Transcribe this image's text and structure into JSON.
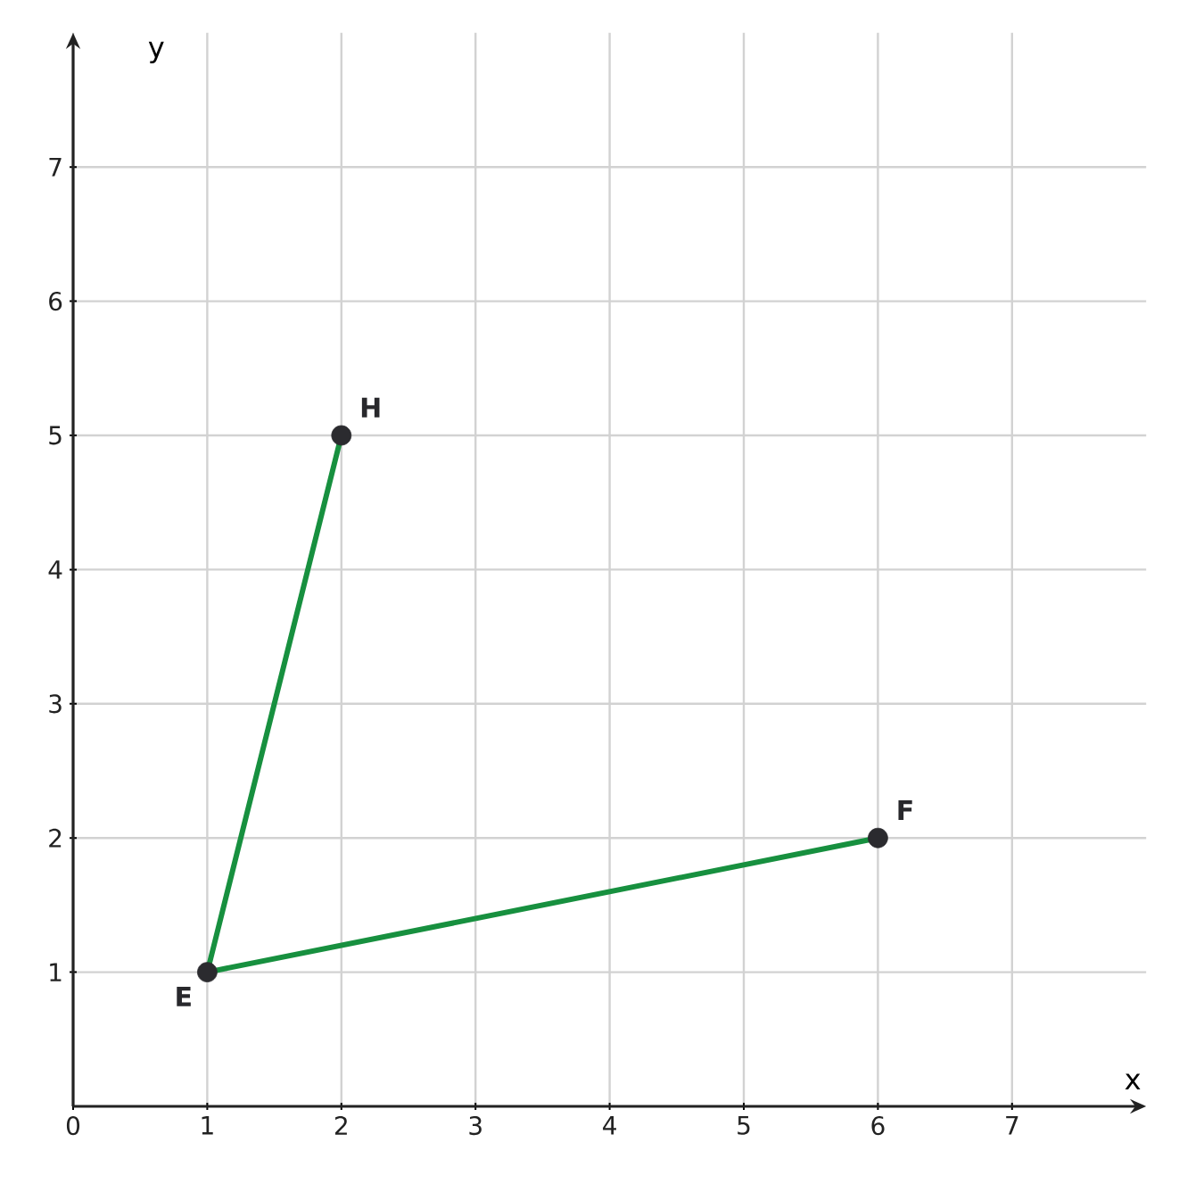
{
  "chart_data": {
    "type": "line",
    "xlabel": "x",
    "ylabel": "y",
    "xlim": [
      0,
      8
    ],
    "ylim": [
      0,
      8
    ],
    "xticks": [
      0,
      1,
      2,
      3,
      4,
      5,
      6,
      7
    ],
    "yticks": [
      1,
      2,
      3,
      4,
      5,
      6,
      7
    ],
    "grid": true,
    "series": [
      {
        "color": "#17903f",
        "x": [
          2,
          1,
          6
        ],
        "values": [
          5,
          1,
          2
        ],
        "marker": "none"
      },
      {
        "type": "scatter",
        "color": "#2b2b2f",
        "x": [
          2,
          1,
          6
        ],
        "values": [
          5,
          1,
          2
        ],
        "marker": "circle"
      }
    ],
    "annotations": [
      {
        "text": "H",
        "x": 2,
        "y": 5
      },
      {
        "text": "E",
        "x": 1,
        "y": 1
      },
      {
        "text": "F",
        "x": 6,
        "y": 2
      }
    ]
  }
}
